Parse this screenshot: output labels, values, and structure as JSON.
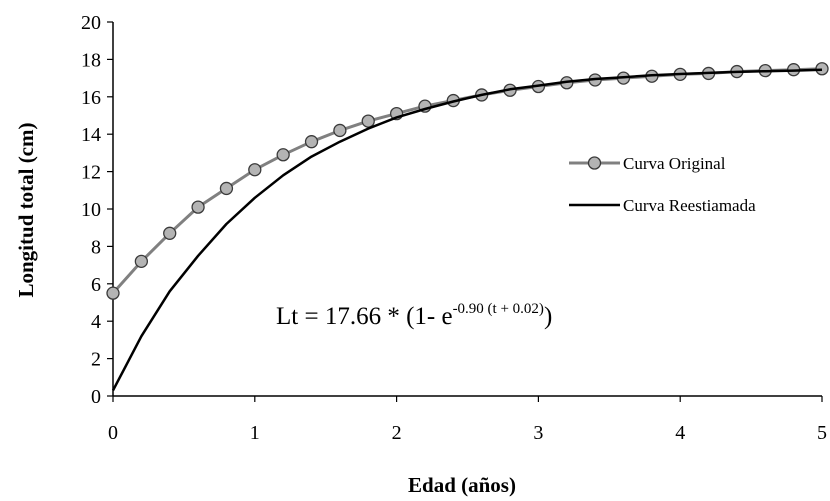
{
  "chart_data": {
    "type": "line",
    "xlabel": "Edad (años)",
    "ylabel": "Longitud total (cm)",
    "xlim": [
      0,
      5
    ],
    "ylim": [
      0,
      20
    ],
    "x_ticks": [
      "0",
      "1",
      "2",
      "3",
      "4",
      "5"
    ],
    "y_ticks": [
      "0",
      "2",
      "4",
      "6",
      "8",
      "10",
      "12",
      "14",
      "16",
      "18",
      "20"
    ],
    "grid": false,
    "legend_position": "right",
    "annotation": {
      "base": "Lt = 17.66 * (1- e",
      "exponent": "-0.90 (t + 0.02)",
      "close": ")"
    },
    "series": [
      {
        "name": "Curva Original",
        "color": "#808080",
        "marker": "circle",
        "marker_fill": "#b4b4b4",
        "x": [
          0,
          0.2,
          0.4,
          0.6,
          0.8,
          1.0,
          1.2,
          1.4,
          1.6,
          1.8,
          2.0,
          2.2,
          2.4,
          2.6,
          2.8,
          3.0,
          3.2,
          3.4,
          3.6,
          3.8,
          4.0,
          4.2,
          4.4,
          4.6,
          4.8,
          5.0
        ],
        "y": [
          5.5,
          7.2,
          8.7,
          10.1,
          11.1,
          12.1,
          12.9,
          13.6,
          14.2,
          14.7,
          15.1,
          15.5,
          15.8,
          16.1,
          16.35,
          16.55,
          16.75,
          16.9,
          17.0,
          17.1,
          17.2,
          17.25,
          17.35,
          17.4,
          17.45,
          17.5
        ]
      },
      {
        "name": "Curva Reestiamada",
        "color": "#000000",
        "x": [
          0,
          0.2,
          0.4,
          0.6,
          0.8,
          1.0,
          1.2,
          1.4,
          1.6,
          1.8,
          2.0,
          2.2,
          2.4,
          2.6,
          2.8,
          3.0,
          3.2,
          3.4,
          3.6,
          3.8,
          4.0,
          4.2,
          4.4,
          4.6,
          4.8,
          5.0
        ],
        "y": [
          0.3,
          3.2,
          5.6,
          7.5,
          9.2,
          10.6,
          11.8,
          12.8,
          13.6,
          14.3,
          14.9,
          15.35,
          15.75,
          16.1,
          16.4,
          16.6,
          16.8,
          16.95,
          17.05,
          17.15,
          17.22,
          17.28,
          17.33,
          17.37,
          17.4,
          17.45
        ]
      }
    ]
  }
}
